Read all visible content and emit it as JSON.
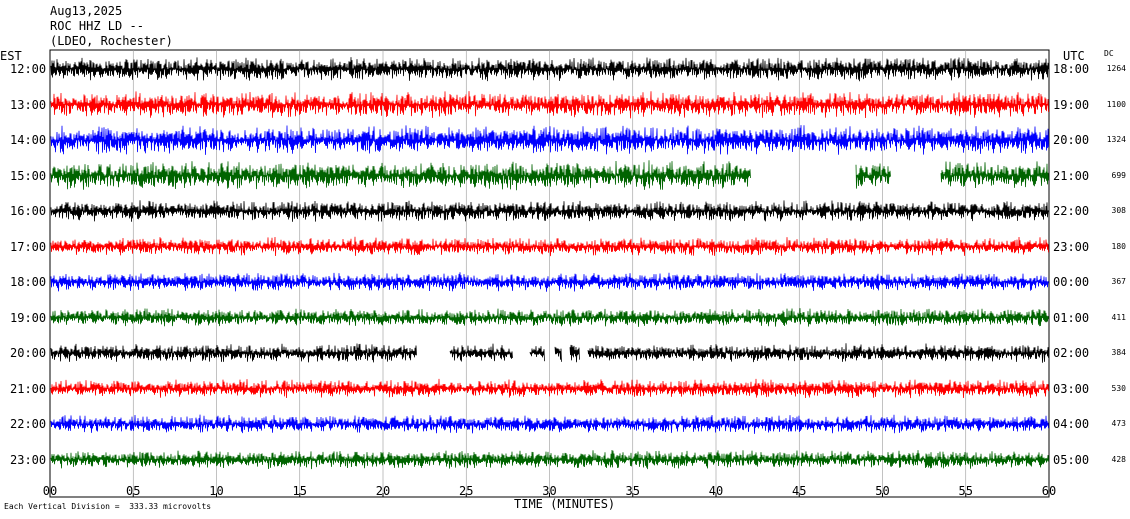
{
  "header": {
    "date": "Aug13,2025",
    "station": "ROC HHZ LD --",
    "network": "(LDEO, Rochester)"
  },
  "axes": {
    "left_zone": "EST",
    "right_zone": "UTC",
    "dc_label": "DC",
    "xlabel": "TIME (MINUTES)",
    "footer": "Each Vertical Division =  333.33 microvolts"
  },
  "chart_data": {
    "type": "line",
    "title": "",
    "xlabel": "TIME (MINUTES)",
    "xlim": [
      0,
      60
    ],
    "xticks": [
      "00",
      "05",
      "10",
      "15",
      "20",
      "25",
      "30",
      "35",
      "40",
      "45",
      "50",
      "55",
      "60"
    ],
    "grid": true,
    "rows": [
      {
        "est": "12:00",
        "utc": "18:00",
        "dc": "1264",
        "color": "#000000",
        "noise": 9,
        "gaps": []
      },
      {
        "est": "13:00",
        "utc": "19:00",
        "dc": "1100",
        "color": "#ff0000",
        "noise": 10,
        "gaps": []
      },
      {
        "est": "14:00",
        "utc": "20:00",
        "dc": "1324",
        "color": "#0000ff",
        "noise": 11,
        "gaps": []
      },
      {
        "est": "15:00",
        "utc": "21:00",
        "dc": "699",
        "color": "#006400",
        "noise": 11,
        "gaps": [
          [
            42.1,
            48.4
          ],
          [
            50.5,
            53.5
          ]
        ]
      },
      {
        "est": "16:00",
        "utc": "22:00",
        "dc": "308",
        "color": "#000000",
        "noise": 8,
        "gaps": []
      },
      {
        "est": "17:00",
        "utc": "23:00",
        "dc": "180",
        "color": "#ff0000",
        "noise": 7,
        "gaps": []
      },
      {
        "est": "18:00",
        "utc": "00:00",
        "dc": "367",
        "color": "#0000ff",
        "noise": 7,
        "gaps": []
      },
      {
        "est": "19:00",
        "utc": "01:00",
        "dc": "411",
        "color": "#006400",
        "noise": 7,
        "gaps": []
      },
      {
        "est": "20:00",
        "utc": "02:00",
        "dc": "384",
        "color": "#000000",
        "noise": 7,
        "gaps": [
          [
            22.0,
            24.0
          ],
          [
            27.8,
            28.8
          ],
          [
            29.7,
            30.3
          ],
          [
            30.7,
            31.2
          ],
          [
            31.8,
            32.3
          ]
        ]
      },
      {
        "est": "21:00",
        "utc": "03:00",
        "dc": "530",
        "color": "#ff0000",
        "noise": 7,
        "gaps": []
      },
      {
        "est": "22:00",
        "utc": "04:00",
        "dc": "473",
        "color": "#0000ff",
        "noise": 7,
        "gaps": []
      },
      {
        "est": "23:00",
        "utc": "05:00",
        "dc": "428",
        "color": "#006400",
        "noise": 7,
        "gaps": []
      }
    ]
  }
}
